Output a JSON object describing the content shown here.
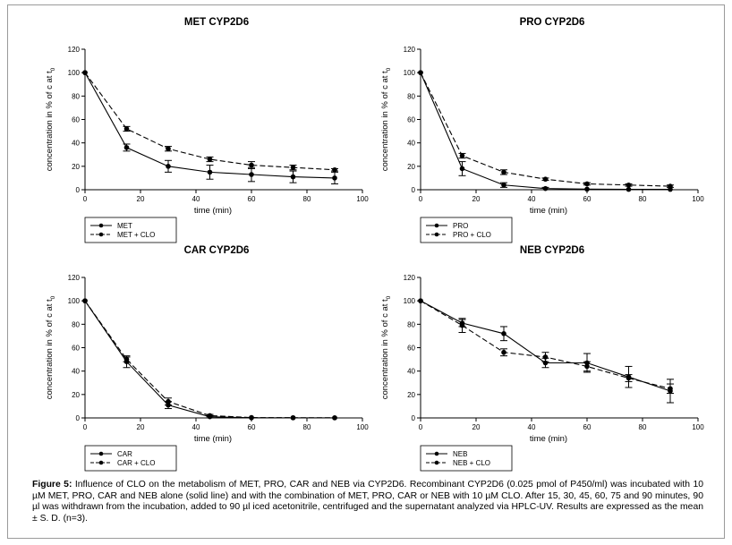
{
  "figure": {
    "caption_label": "Figure 5:",
    "caption_text": "Influence of CLO on the metabolism of MET, PRO, CAR and NEB via CYP2D6. Recombinant CYP2D6 (0.025 pmol of P450/ml) was incubated with 10 µM MET, PRO, CAR and NEB alone (solid line) and with the combination of MET, PRO, CAR or NEB with 10 µM CLO. After 15, 30, 45, 60, 75 and 90 minutes, 90 µl was withdrawn from the incubation, added to 90 µl iced acetonitrile, centrifuged and the supernatant analyzed via HPLC-UV. Results are expressed as the mean ± S. D. (n=3)."
  },
  "chart_data": [
    {
      "type": "line",
      "title": "MET CYP2D6",
      "xlabel": "time (min)",
      "ylabel": "concentration in % of c at t",
      "ylabel_sub": "0",
      "xlim": [
        0,
        100
      ],
      "ylim": [
        0,
        120
      ],
      "xticks": [
        0,
        20,
        40,
        60,
        80,
        100
      ],
      "yticks": [
        0,
        20,
        40,
        60,
        80,
        100,
        120
      ],
      "x": [
        0,
        15,
        30,
        45,
        60,
        75,
        90
      ],
      "legend_position": "bottom-left",
      "series": [
        {
          "name": "MET",
          "style": "solid",
          "values": [
            100,
            36,
            20,
            15,
            13,
            11,
            10
          ],
          "errors": [
            0,
            3,
            5,
            6,
            6,
            5,
            5
          ]
        },
        {
          "name": "MET + CLO",
          "style": "dashed",
          "values": [
            100,
            52,
            35,
            26,
            21,
            19,
            17
          ],
          "errors": [
            0,
            2,
            2,
            2,
            3,
            2,
            1
          ]
        }
      ]
    },
    {
      "type": "line",
      "title": "PRO CYP2D6",
      "xlabel": "time (min)",
      "ylabel": "concentration in % of c at t",
      "ylabel_sub": "0",
      "xlim": [
        0,
        100
      ],
      "ylim": [
        0,
        120
      ],
      "xticks": [
        0,
        20,
        40,
        60,
        80,
        100
      ],
      "yticks": [
        0,
        20,
        40,
        60,
        80,
        100,
        120
      ],
      "x": [
        0,
        15,
        30,
        45,
        60,
        75,
        90
      ],
      "legend_position": "bottom-left",
      "series": [
        {
          "name": "PRO",
          "style": "solid",
          "values": [
            100,
            18,
            4,
            1,
            0.5,
            0.3,
            0.3
          ],
          "errors": [
            0,
            6,
            2,
            1,
            0,
            0,
            0
          ]
        },
        {
          "name": "PRO + CLO",
          "style": "dashed",
          "values": [
            100,
            29,
            15,
            9,
            5,
            4,
            3
          ],
          "errors": [
            0,
            2,
            2,
            1,
            1,
            1,
            1
          ]
        }
      ]
    },
    {
      "type": "line",
      "title": "CAR CYP2D6",
      "xlabel": "time (min)",
      "ylabel": "concentration in % of c at t",
      "ylabel_sub": "0",
      "xlim": [
        0,
        100
      ],
      "ylim": [
        0,
        120
      ],
      "xticks": [
        0,
        20,
        40,
        60,
        80,
        100
      ],
      "yticks": [
        0,
        20,
        40,
        60,
        80,
        100,
        120
      ],
      "x": [
        0,
        15,
        30,
        45,
        60,
        75,
        90
      ],
      "legend_position": "bottom-left",
      "series": [
        {
          "name": "CAR",
          "style": "solid",
          "values": [
            100,
            48,
            11,
            1,
            0.2,
            0.1,
            0.1
          ],
          "errors": [
            0,
            5,
            3,
            1,
            0,
            0,
            0
          ]
        },
        {
          "name": "CAR + CLO",
          "style": "dashed",
          "values": [
            100,
            50,
            14,
            2,
            0.3,
            0.2,
            0.1
          ],
          "errors": [
            0,
            2,
            3,
            1,
            0,
            0,
            0
          ]
        }
      ]
    },
    {
      "type": "line",
      "title": "NEB CYP2D6",
      "xlabel": "time (min)",
      "ylabel": "concentration in % of c at t",
      "ylabel_sub": "0",
      "xlim": [
        0,
        100
      ],
      "ylim": [
        0,
        120
      ],
      "xticks": [
        0,
        20,
        40,
        60,
        80,
        100
      ],
      "yticks": [
        0,
        20,
        40,
        60,
        80,
        100,
        120
      ],
      "x": [
        0,
        15,
        30,
        45,
        60,
        75,
        90
      ],
      "legend_position": "bottom-left",
      "series": [
        {
          "name": "NEB",
          "style": "solid",
          "values": [
            100,
            81,
            72,
            47,
            47,
            35,
            23
          ],
          "errors": [
            0,
            3,
            6,
            4,
            8,
            9,
            10
          ]
        },
        {
          "name": "NEB + CLO",
          "style": "dashed",
          "values": [
            100,
            79,
            56,
            52,
            44,
            34,
            25
          ],
          "errors": [
            0,
            6,
            3,
            4,
            4,
            3,
            4
          ]
        }
      ]
    }
  ]
}
